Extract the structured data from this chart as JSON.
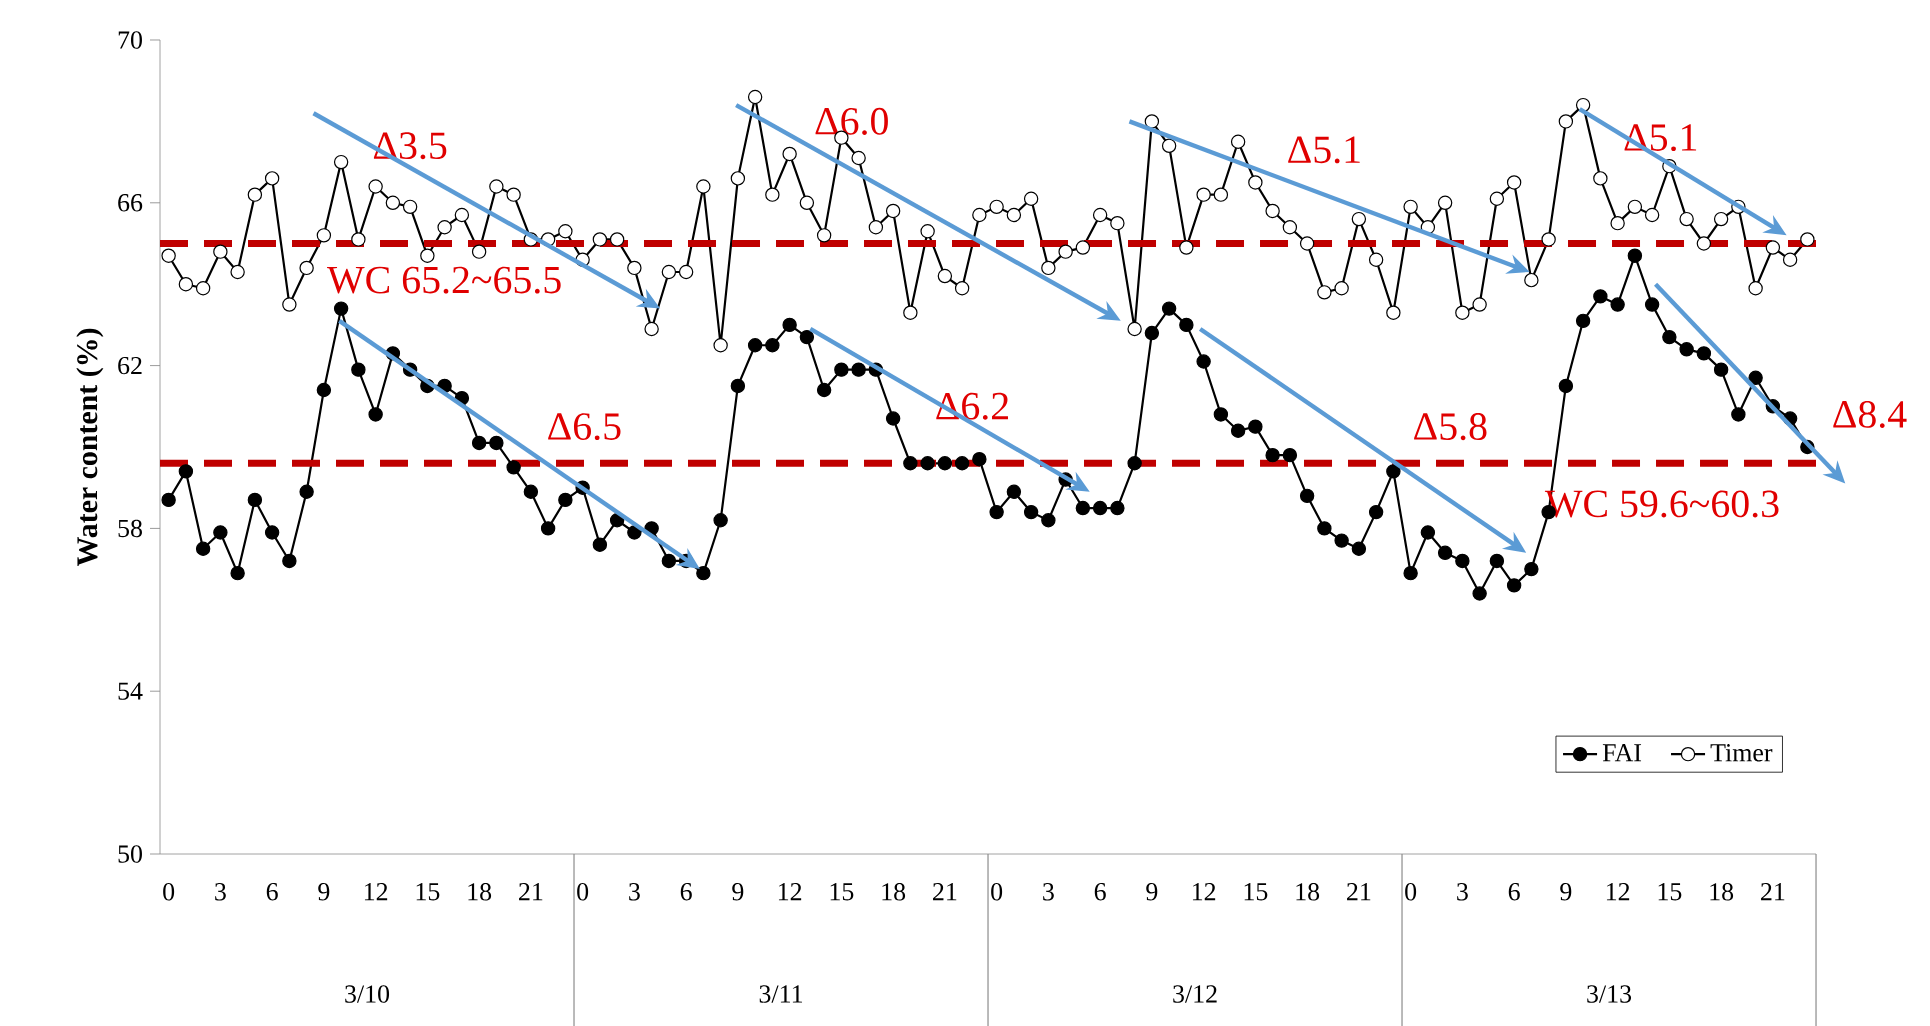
{
  "chart_data": {
    "type": "line",
    "ylabel": "Water content (%)",
    "categories": [
      "0",
      null,
      null,
      "3",
      null,
      null,
      "6",
      null,
      null,
      "9",
      null,
      null,
      "12",
      null,
      null,
      "15",
      null,
      null,
      "18",
      null,
      null,
      "21",
      null,
      null,
      "0",
      null,
      null,
      "3",
      null,
      null,
      "6",
      null,
      null,
      "9",
      null,
      null,
      "12",
      null,
      null,
      "15",
      null,
      null,
      "18",
      null,
      null,
      "21",
      null,
      null,
      "0",
      null,
      null,
      "3",
      null,
      null,
      "6",
      null,
      null,
      "9",
      null,
      null,
      "12",
      null,
      null,
      "15",
      null,
      null,
      "18",
      null,
      null,
      "21",
      null,
      null,
      "0",
      null,
      null,
      "3",
      null,
      null,
      "6",
      null,
      null,
      "9",
      null,
      null,
      "12",
      null,
      null,
      "15",
      null,
      null,
      "18",
      null,
      null,
      "21",
      null,
      null
    ],
    "series": [
      {
        "name": "FAI",
        "color": "#000000",
        "values": [
          58.7,
          59.4,
          57.5,
          57.9,
          56.9,
          58.7,
          57.9,
          57.2,
          58.9,
          61.4,
          63.4,
          61.9,
          60.8,
          62.3,
          61.9,
          61.5,
          61.5,
          61.2,
          60.1,
          60.1,
          59.5,
          58.9,
          58.0,
          58.7,
          59.0,
          57.6,
          58.2,
          57.9,
          58.0,
          57.2,
          57.2,
          56.9,
          58.2,
          61.5,
          62.5,
          62.5,
          63.0,
          62.7,
          61.4,
          61.9,
          61.9,
          61.9,
          60.7,
          59.6,
          59.6,
          59.6,
          59.6,
          59.7,
          58.4,
          58.9,
          58.4,
          58.2,
          59.2,
          58.5,
          58.5,
          58.5,
          59.6,
          62.8,
          63.4,
          63.0,
          62.1,
          60.8,
          60.4,
          60.5,
          59.8,
          59.8,
          58.8,
          58.0,
          57.7,
          57.5,
          58.4,
          59.4,
          56.9,
          57.9,
          57.4,
          57.2,
          56.4,
          57.2,
          56.6,
          57.0,
          58.4,
          61.5,
          63.1,
          63.7,
          63.5,
          64.7,
          63.5,
          62.7,
          62.4,
          62.3,
          61.9,
          60.8,
          61.7,
          61.0,
          60.7,
          60.0
        ]
      },
      {
        "name": "Timer",
        "color": "#000000",
        "values": [
          64.7,
          64.0,
          63.9,
          64.8,
          64.3,
          66.2,
          66.6,
          63.5,
          64.4,
          65.2,
          67.0,
          65.1,
          66.4,
          66.0,
          65.9,
          64.7,
          65.4,
          65.7,
          64.8,
          66.4,
          66.2,
          65.1,
          65.1,
          65.3,
          64.6,
          65.1,
          65.1,
          64.4,
          62.9,
          64.3,
          64.3,
          66.4,
          62.5,
          66.6,
          68.6,
          66.2,
          67.2,
          66.0,
          65.2,
          67.6,
          67.1,
          65.4,
          65.8,
          63.3,
          65.3,
          64.2,
          63.9,
          65.7,
          65.9,
          65.7,
          66.1,
          64.4,
          64.8,
          64.9,
          65.7,
          65.5,
          62.9,
          68.0,
          67.4,
          64.9,
          66.2,
          66.2,
          67.5,
          66.5,
          65.8,
          65.4,
          65.0,
          63.8,
          63.9,
          65.6,
          64.6,
          63.3,
          65.9,
          65.4,
          66.0,
          63.3,
          63.5,
          66.1,
          66.5,
          64.1,
          65.1,
          68.0,
          68.4,
          66.6,
          65.5,
          65.9,
          65.7,
          66.9,
          65.6,
          65.0,
          65.6,
          65.9,
          63.9,
          64.9,
          64.6,
          65.1
        ]
      }
    ],
    "ylim": [
      50,
      70
    ],
    "yticks": [
      50,
      54,
      58,
      62,
      66,
      70
    ],
    "marker": "circle",
    "legend": "bottom right",
    "ref_lines": [
      {
        "axis": "y",
        "value": 65,
        "label": "WC 65.2~65.5",
        "color": "#c00000",
        "line_style": "dashed"
      },
      {
        "axis": "y",
        "value": 59.6,
        "label": "WC 59.6~60.3",
        "color": "#c00000",
        "line_style": "dashed"
      }
    ],
    "annotations": [
      "Δ3.5",
      "Δ6.5",
      "Δ6.0",
      "Δ6.2",
      "Δ5.1",
      "Δ5.8",
      "Δ5.1",
      "Δ8.4",
      "3/10",
      "3/11",
      "3/12",
      "3/13"
    ]
  }
}
